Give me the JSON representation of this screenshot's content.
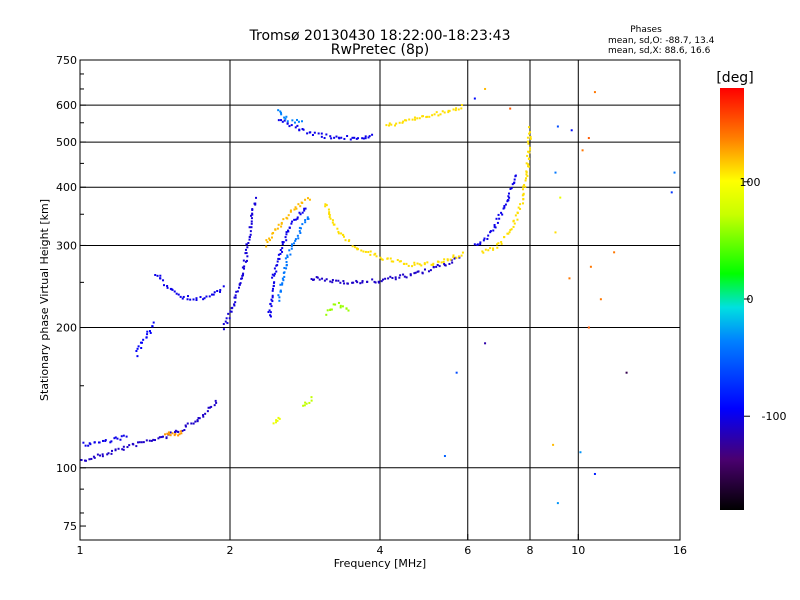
{
  "chart_data": {
    "type": "scatter",
    "title": "Tromsø 20130430 18:22:00-18:23:43",
    "subtitle": "RwPretec (8p)",
    "xlabel": "Frequency [MHz]",
    "ylabel": "Stationary phase Virtual Height [km]",
    "x_scale": "log",
    "y_scale": "log",
    "xlim": [
      1,
      16
    ],
    "ylim": [
      70,
      750
    ],
    "x_ticks": [
      1,
      2,
      4,
      6,
      8,
      10,
      16
    ],
    "y_ticks": [
      75,
      100,
      200,
      300,
      400,
      500,
      600,
      750
    ],
    "grid_x": [
      2,
      4,
      6,
      8,
      10
    ],
    "grid_y": [
      100,
      200,
      300,
      400,
      500,
      600
    ],
    "stats": {
      "heading": "Phases",
      "line_o": "mean, sd,O: -88.7, 13.4",
      "line_x": "mean, sd,X:  88.6, 16.6"
    },
    "colorbar": {
      "label": "[deg]",
      "min": -180,
      "max": 180,
      "ticks": [
        -100,
        0,
        100
      ]
    },
    "series_segments": [
      {
        "x": [
          1.0,
          1.15,
          1.32,
          1.5,
          1.7,
          1.9
        ],
        "y": [
          103,
          108,
          113,
          117,
          125,
          140
        ],
        "phase": -110
      },
      {
        "x": [
          1.0,
          1.12,
          1.25
        ],
        "y": [
          112,
          114,
          117
        ],
        "phase": -100
      },
      {
        "x": [
          1.48,
          1.55,
          1.6
        ],
        "y": [
          118,
          118,
          119
        ],
        "phase": 130
      },
      {
        "x": [
          1.3,
          1.35,
          1.42
        ],
        "y": [
          175,
          190,
          205
        ],
        "phase": -95
      },
      {
        "x": [
          1.42,
          1.5,
          1.6,
          1.72,
          1.85,
          1.95
        ],
        "y": [
          260,
          245,
          233,
          230,
          235,
          245
        ],
        "phase": -100
      },
      {
        "x": [
          1.95,
          2.05,
          2.15,
          2.25
        ],
        "y": [
          200,
          230,
          280,
          380
        ],
        "phase": -105
      },
      {
        "x": [
          2.4,
          2.45,
          2.55,
          2.65,
          2.75,
          2.85
        ],
        "y": [
          210,
          260,
          300,
          330,
          350,
          360
        ],
        "phase": -100
      },
      {
        "x": [
          2.5,
          2.6,
          2.75,
          2.9
        ],
        "y": [
          230,
          280,
          320,
          350
        ],
        "phase": -40
      },
      {
        "x": [
          2.35,
          2.5,
          2.7,
          2.9
        ],
        "y": [
          300,
          330,
          360,
          380
        ],
        "phase": 120
      },
      {
        "x": [
          2.9,
          3.2,
          3.6,
          4.0,
          4.5,
          5.0,
          5.5,
          5.8
        ],
        "y": [
          255,
          252,
          250,
          252,
          258,
          265,
          275,
          285
        ],
        "phase": -110
      },
      {
        "x": [
          3.1,
          3.3,
          3.6,
          4.0,
          4.4,
          4.8,
          5.2,
          5.6,
          5.9
        ],
        "y": [
          370,
          320,
          295,
          283,
          275,
          272,
          275,
          282,
          290
        ],
        "phase": 110
      },
      {
        "x": [
          2.5,
          2.8,
          3.1,
          3.4,
          3.7,
          3.9
        ],
        "y": [
          560,
          530,
          515,
          510,
          512,
          520
        ],
        "phase": -100
      },
      {
        "x": [
          2.5,
          2.6,
          2.8
        ],
        "y": [
          580,
          560,
          550
        ],
        "phase": -35
      },
      {
        "x": [
          4.1,
          4.5,
          5.0,
          5.5,
          5.9
        ],
        "y": [
          540,
          555,
          570,
          580,
          600
        ],
        "phase": 110
      },
      {
        "x": [
          6.2,
          6.5,
          6.8,
          7.1,
          7.3,
          7.5
        ],
        "y": [
          300,
          310,
          330,
          360,
          390,
          430
        ],
        "phase": -100
      },
      {
        "x": [
          6.4,
          6.9,
          7.3,
          7.7,
          7.9,
          8.0
        ],
        "y": [
          290,
          300,
          320,
          370,
          430,
          540
        ],
        "phase": 110
      },
      {
        "x": [
          3.1,
          3.3,
          3.5
        ],
        "y": [
          215,
          225,
          215
        ],
        "phase": 60
      },
      {
        "x": [
          2.45,
          2.55
        ],
        "y": [
          125,
          128
        ],
        "phase": 90
      },
      {
        "x": [
          2.8,
          2.95
        ],
        "y": [
          135,
          142
        ],
        "phase": 70
      }
    ],
    "scatter_points": [
      {
        "x": 9.1,
        "y": 540,
        "phase": -60
      },
      {
        "x": 9.0,
        "y": 430,
        "phase": -40
      },
      {
        "x": 9.2,
        "y": 380,
        "phase": 90
      },
      {
        "x": 9.0,
        "y": 320,
        "phase": 110
      },
      {
        "x": 9.1,
        "y": 84,
        "phase": -30
      },
      {
        "x": 8.9,
        "y": 112,
        "phase": 120
      },
      {
        "x": 10.5,
        "y": 510,
        "phase": 150
      },
      {
        "x": 10.8,
        "y": 640,
        "phase": 140
      },
      {
        "x": 10.2,
        "y": 480,
        "phase": 140
      },
      {
        "x": 10.6,
        "y": 270,
        "phase": 140
      },
      {
        "x": 11.8,
        "y": 290,
        "phase": 140
      },
      {
        "x": 12.5,
        "y": 160,
        "phase": -150
      },
      {
        "x": 10.5,
        "y": 200,
        "phase": 150
      },
      {
        "x": 11.1,
        "y": 230,
        "phase": 140
      },
      {
        "x": 10.1,
        "y": 108,
        "phase": -30
      },
      {
        "x": 10.8,
        "y": 97,
        "phase": -80
      },
      {
        "x": 15.6,
        "y": 430,
        "phase": -40
      },
      {
        "x": 15.4,
        "y": 390,
        "phase": -70
      },
      {
        "x": 9.7,
        "y": 530,
        "phase": -90
      },
      {
        "x": 9.6,
        "y": 255,
        "phase": 140
      },
      {
        "x": 5.7,
        "y": 160,
        "phase": -60
      },
      {
        "x": 6.5,
        "y": 185,
        "phase": -120
      },
      {
        "x": 5.4,
        "y": 106,
        "phase": -50
      },
      {
        "x": 7.3,
        "y": 590,
        "phase": 150
      },
      {
        "x": 6.2,
        "y": 620,
        "phase": -90
      },
      {
        "x": 6.5,
        "y": 650,
        "phase": 120
      }
    ]
  }
}
